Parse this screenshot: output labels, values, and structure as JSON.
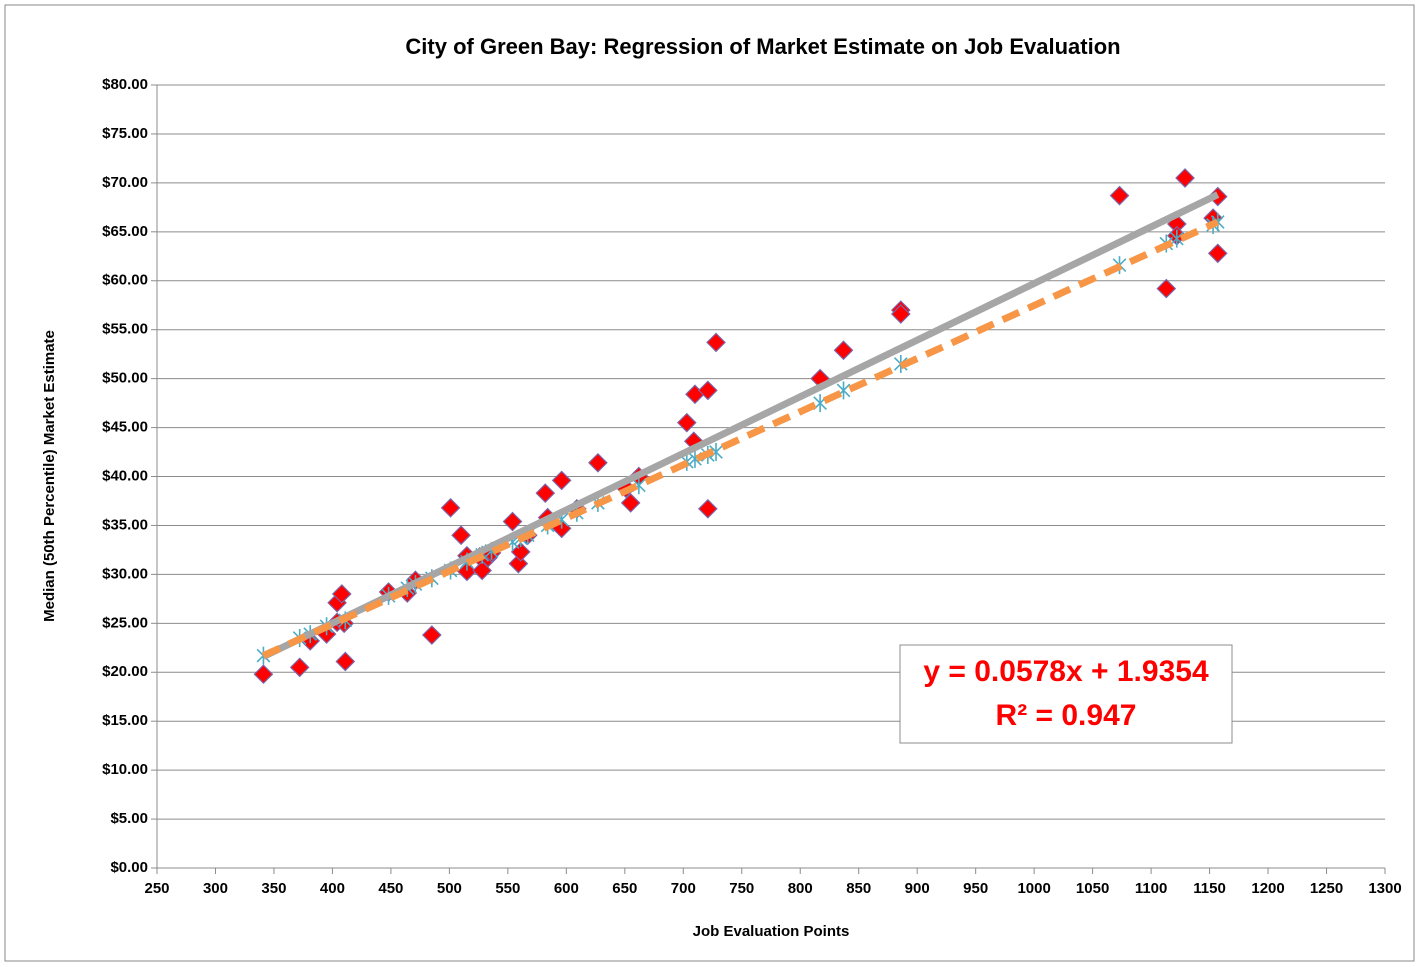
{
  "chart_data": {
    "type": "scatter",
    "title": "City of Green Bay: Regression of Market Estimate on Job Evaluation",
    "xlabel": "Job Evaluation Points",
    "ylabel": "Median (50th Percentile) Market Estimate",
    "xlim": [
      250,
      1300
    ],
    "xticks": [
      250,
      300,
      350,
      400,
      450,
      500,
      550,
      600,
      650,
      700,
      750,
      800,
      850,
      900,
      950,
      1000,
      1050,
      1100,
      1150,
      1200,
      1250,
      1300
    ],
    "ylim": [
      0,
      80
    ],
    "yticks": [
      {
        "value": 0,
        "label": "$0.00"
      },
      {
        "value": 5,
        "label": "$5.00"
      },
      {
        "value": 10,
        "label": "$10.00"
      },
      {
        "value": 15,
        "label": "$15.00"
      },
      {
        "value": 20,
        "label": "$20.00"
      },
      {
        "value": 25,
        "label": "$25.00"
      },
      {
        "value": 30,
        "label": "$30.00"
      },
      {
        "value": 35,
        "label": "$35.00"
      },
      {
        "value": 40,
        "label": "$40.00"
      },
      {
        "value": 45,
        "label": "$45.00"
      },
      {
        "value": 50,
        "label": "$50.00"
      },
      {
        "value": 55,
        "label": "$55.00"
      },
      {
        "value": 60,
        "label": "$60.00"
      },
      {
        "value": 65,
        "label": "$65.00"
      },
      {
        "value": 70,
        "label": "$70.00"
      },
      {
        "value": 75,
        "label": "$75.00"
      },
      {
        "value": 80,
        "label": "$80.00"
      }
    ],
    "grid": true,
    "series": [
      {
        "marker": "diamond",
        "color": "#ff0000",
        "x": [
          341,
          372,
          381,
          395,
          404,
          404,
          408,
          411,
          410,
          448,
          464,
          471,
          485,
          501,
          510,
          515,
          515,
          526,
          528,
          533,
          536,
          554,
          559,
          561,
          567,
          582,
          584,
          596,
          596,
          609,
          627,
          651,
          655,
          662,
          703,
          709,
          710,
          721,
          721,
          728,
          817,
          837,
          886,
          886,
          1073,
          1113,
          1122,
          1122,
          1129,
          1153,
          1157,
          1157
        ],
        "values": [
          19.8,
          20.5,
          23.2,
          23.9,
          25.1,
          27.1,
          28.0,
          21.1,
          25.0,
          28.2,
          28.1,
          29.4,
          23.8,
          36.8,
          34.0,
          31.9,
          30.3,
          31.8,
          30.4,
          31.7,
          32.2,
          35.4,
          31.1,
          32.3,
          34.0,
          38.3,
          35.8,
          34.7,
          39.6,
          36.7,
          41.4,
          38.8,
          37.3,
          40.0,
          45.5,
          43.6,
          48.4,
          48.8,
          36.7,
          53.7,
          50.0,
          52.9,
          57.0,
          56.6,
          68.7,
          59.2,
          65.8,
          64.6,
          70.5,
          66.4,
          68.6,
          62.8
        ]
      },
      {
        "marker": "asterisk",
        "color": "#4bacc6",
        "x": [
          341,
          372,
          381,
          395,
          411,
          448,
          464,
          471,
          485,
          501,
          515,
          528,
          536,
          554,
          561,
          567,
          584,
          596,
          609,
          627,
          662,
          703,
          710,
          721,
          728,
          817,
          837,
          886,
          1073,
          1113,
          1122,
          1153,
          1157
        ],
        "values": [
          21.7,
          23.5,
          23.9,
          24.7,
          25.3,
          27.8,
          28.6,
          29.0,
          29.6,
          30.4,
          31.3,
          32.0,
          32.4,
          33.3,
          33.7,
          34.0,
          35.0,
          35.6,
          36.3,
          37.3,
          39.1,
          41.5,
          41.8,
          42.2,
          42.5,
          47.5,
          48.8,
          51.5,
          61.6,
          63.8,
          64.3,
          65.7,
          66.0
        ]
      },
      {
        "marker": "solid",
        "color": "#a6a6a6",
        "x": [
          341,
          1157
        ],
        "values": [
          21.6,
          68.8
        ]
      },
      {
        "marker": "dashed",
        "color": "#f79646",
        "x": [
          341,
          1157
        ],
        "values": [
          21.7,
          66.0
        ]
      }
    ],
    "annotations": [
      "y = 0.0578x + 1.9354",
      "R² = 0.947"
    ]
  }
}
